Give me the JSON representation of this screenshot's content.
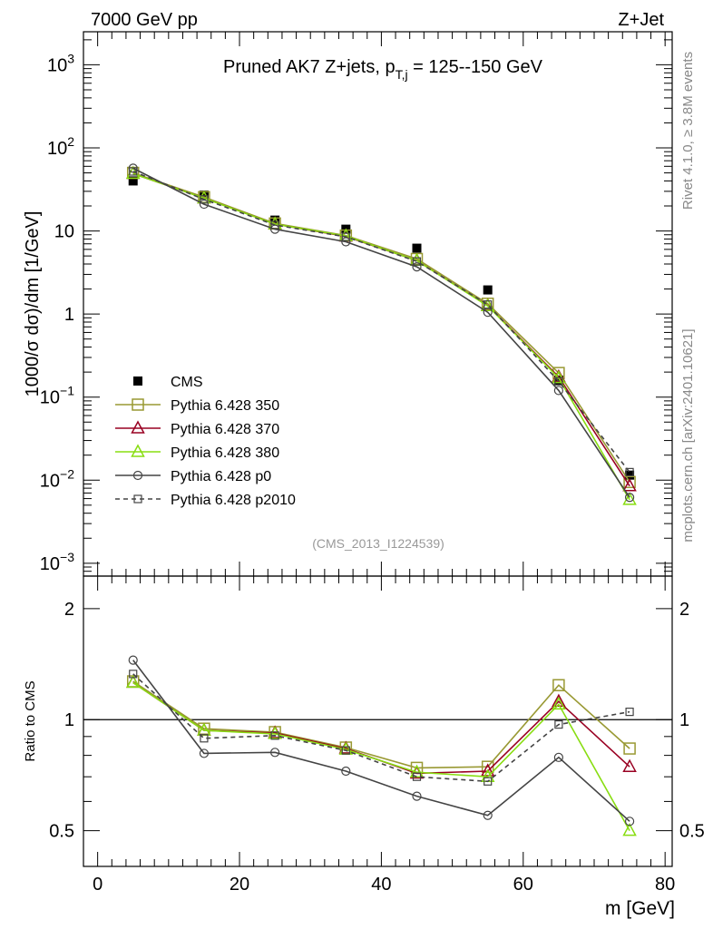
{
  "header": {
    "left": "7000 GeV pp",
    "right": "Z+Jet"
  },
  "side": {
    "rivet": "Rivet 4.1.0, ≥ 3.8M events",
    "mcplots": "mcplots.cern.ch [arXiv:2401.10621]"
  },
  "chart_data": [
    {
      "type": "line",
      "panel": "main",
      "title": "Pruned AK7 Z+jets, p",
      "title_sub": "T,j",
      "title_rest": " = 125--150 GeV",
      "ylabel": "1000/σ   dσ)/dm [1/GeV]",
      "yscale": "log",
      "ylim": [
        0.0007,
        2500
      ],
      "xlim": [
        -2,
        81
      ],
      "watermark": "(CMS_2013_I1224539)",
      "x": [
        5,
        15,
        25,
        35,
        45,
        55,
        65,
        75
      ],
      "y_ticks": [
        {
          "value": 1000,
          "m": "10",
          "e": "3"
        },
        {
          "value": 100,
          "m": "10",
          "e": "2"
        },
        {
          "value": 10,
          "m": "10",
          "e": ""
        },
        {
          "value": 1,
          "m": "1",
          "e": ""
        },
        {
          "value": 0.1,
          "m": "10",
          "e": "−1"
        },
        {
          "value": 0.01,
          "m": "10",
          "e": "−2"
        },
        {
          "value": 0.001,
          "m": "10",
          "e": "−3"
        }
      ],
      "series": [
        {
          "name": "CMS",
          "color": "#000000",
          "marker": "filled-square",
          "values": [
            40,
            27,
            13.5,
            10.5,
            6.2,
            1.95,
            0.16,
            0.0115
          ]
        },
        {
          "name": "Pythia 6.428 350",
          "color": "#999933",
          "marker": "open-square",
          "values": [
            50,
            25.5,
            12.3,
            8.8,
            4.6,
            1.33,
            0.195,
            0.0095
          ]
        },
        {
          "name": "Pythia 6.428 370",
          "color": "#990022",
          "marker": "open-triangle",
          "values": [
            49,
            24.8,
            12.1,
            8.6,
            4.4,
            1.26,
            0.175,
            0.0085
          ]
        },
        {
          "name": "Pythia 6.428 380",
          "color": "#88dd11",
          "marker": "open-triangle",
          "values": [
            49,
            24.8,
            12.1,
            8.7,
            4.4,
            1.25,
            0.17,
            0.0058
          ]
        },
        {
          "name": "Pythia 6.428 p0",
          "color": "#444444",
          "marker": "open-circle",
          "values": [
            57,
            21,
            10.5,
            7.4,
            3.7,
            1.05,
            0.12,
            0.0062
          ]
        },
        {
          "name": "Pythia 6.428 p2010",
          "color": "#444444",
          "marker": "open-square-small",
          "dashed": true,
          "values": [
            52,
            24,
            11.8,
            8.5,
            4.3,
            1.3,
            0.155,
            0.0125
          ]
        }
      ]
    },
    {
      "type": "line",
      "panel": "ratio",
      "ylabel": "Ratio to CMS",
      "xlabel": "m [GeV]",
      "yscale": "log",
      "ylim": [
        0.4,
        2.45
      ],
      "xlim": [
        -2,
        81
      ],
      "x_ticks": [
        "0",
        "20",
        "40",
        "60",
        "80"
      ],
      "y_ticks": [
        "2",
        "1",
        "0.5"
      ],
      "x": [
        5,
        15,
        25,
        35,
        45,
        55,
        65,
        75
      ],
      "series": [
        {
          "name": "Pythia 6.428 350",
          "values": [
            1.27,
            0.945,
            0.925,
            0.84,
            0.74,
            0.745,
            1.24,
            0.835
          ]
        },
        {
          "name": "Pythia 6.428 370",
          "values": [
            1.26,
            0.935,
            0.92,
            0.835,
            0.715,
            0.725,
            1.12,
            0.745
          ]
        },
        {
          "name": "Pythia 6.428 380",
          "values": [
            1.26,
            0.935,
            0.915,
            0.83,
            0.72,
            0.7,
            1.1,
            0.5
          ]
        },
        {
          "name": "Pythia 6.428 p0",
          "values": [
            1.45,
            0.81,
            0.815,
            0.725,
            0.62,
            0.55,
            0.79,
            0.53
          ]
        },
        {
          "name": "Pythia 6.428 p2010",
          "values": [
            1.33,
            0.89,
            0.905,
            0.825,
            0.7,
            0.68,
            0.97,
            1.05
          ]
        }
      ]
    }
  ]
}
